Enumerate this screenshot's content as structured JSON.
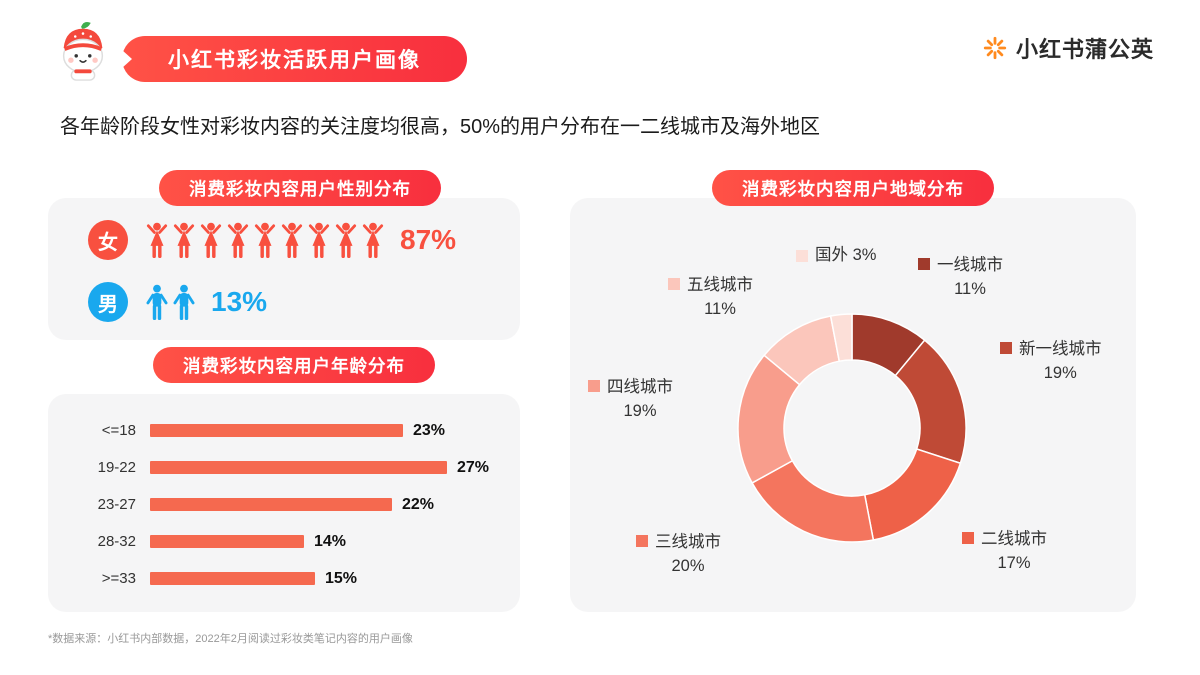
{
  "page": {
    "title_badge": "小红书彩妆活跃用户画像",
    "brand": "小红书蒲公英",
    "subtitle": "各年龄阶段女性对彩妆内容的关注度均很高，50%的用户分布在一二线城市及海外地区",
    "footnote": "*数据来源：小红书内部数据，2022年2月阅读过彩妆类笔记内容的用户画像"
  },
  "colors": {
    "accent_red": "#f82f3e",
    "pill_gradient_start": "#ff5246",
    "pill_gradient_end": "#f82f3e",
    "female_red": "#f8503f",
    "male_blue": "#19a8ee",
    "bar_red": "#f5694f",
    "panel_gray": "#f5f5f6",
    "brand_orange": "#ff8a1e"
  },
  "chart_data": [
    {
      "type": "pictogram",
      "title": "消费彩妆内容用户性别分布",
      "categories": [
        "女",
        "男"
      ],
      "values": [
        87,
        13
      ],
      "labels": [
        "87%",
        "13%"
      ],
      "icon_counts": [
        9,
        2
      ],
      "colors": [
        "#f8503f",
        "#19a8ee"
      ]
    },
    {
      "type": "bar",
      "title": "消费彩妆内容用户年龄分布",
      "categories": [
        "<=18",
        "19-22",
        "23-27",
        "28-32",
        ">=33"
      ],
      "values": [
        23,
        27,
        22,
        14,
        15
      ],
      "unit": "%",
      "bar_color": "#f5694f",
      "xlim": [
        0,
        30
      ],
      "orientation": "horizontal"
    },
    {
      "type": "donut",
      "title": "消费彩妆内容用户地域分布",
      "categories": [
        "一线城市",
        "新一线城市",
        "二线城市",
        "三线城市",
        "四线城市",
        "五线城市",
        "国外"
      ],
      "values": [
        11,
        19,
        17,
        20,
        19,
        11,
        3
      ],
      "unit": "%",
      "colors": [
        "#a03a2c",
        "#bf4a36",
        "#ee6148",
        "#f4755e",
        "#f89d8c",
        "#fbc6bb",
        "#fcdfd8"
      ],
      "start_angle_deg": 0,
      "direction": "clockwise"
    }
  ]
}
